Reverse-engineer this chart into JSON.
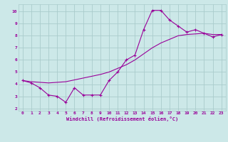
{
  "xlabel": "Windchill (Refroidissement éolien,°C)",
  "bg_color": "#cce8e8",
  "grid_color": "#aacccc",
  "line_color": "#990099",
  "x_jagged": [
    0,
    1,
    2,
    3,
    4,
    5,
    6,
    7,
    8,
    9,
    10,
    11,
    12,
    13,
    14,
    15,
    16,
    17,
    18,
    19,
    20,
    21,
    22,
    23
  ],
  "y_jagged": [
    4.3,
    4.1,
    3.7,
    3.1,
    3.0,
    2.5,
    3.7,
    3.1,
    3.1,
    3.1,
    4.3,
    5.0,
    6.0,
    6.4,
    8.5,
    10.1,
    10.1,
    9.3,
    8.8,
    8.3,
    8.5,
    8.2,
    7.9,
    8.1
  ],
  "x_trend": [
    0,
    1,
    2,
    3,
    4,
    5,
    6,
    7,
    8,
    9,
    10,
    11,
    12,
    13,
    14,
    15,
    16,
    17,
    18,
    19,
    20,
    21,
    22,
    23
  ],
  "y_trend": [
    4.3,
    4.2,
    4.15,
    4.1,
    4.15,
    4.2,
    4.35,
    4.5,
    4.65,
    4.8,
    5.0,
    5.3,
    5.6,
    6.0,
    6.5,
    7.0,
    7.4,
    7.7,
    8.0,
    8.1,
    8.15,
    8.2,
    8.1,
    8.1
  ],
  "xlim": [
    -0.5,
    23.5
  ],
  "ylim": [
    1.8,
    10.6
  ],
  "yticks": [
    2,
    3,
    4,
    5,
    6,
    7,
    8,
    9,
    10
  ],
  "xticks": [
    0,
    1,
    2,
    3,
    4,
    5,
    6,
    7,
    8,
    9,
    10,
    11,
    12,
    13,
    14,
    15,
    16,
    17,
    18,
    19,
    20,
    21,
    22,
    23
  ]
}
